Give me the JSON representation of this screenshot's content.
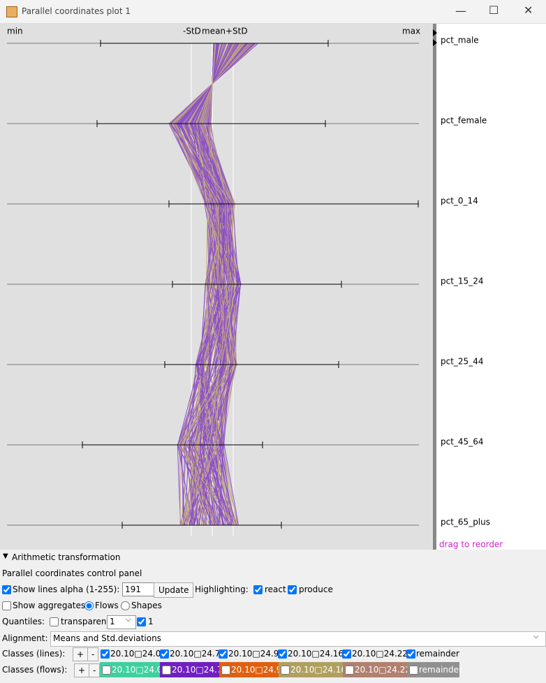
{
  "window": {
    "title": "Parallel coordinates plot 1"
  },
  "plot": {
    "header": {
      "min": "min",
      "minus_std": "-StD",
      "mean": "mean",
      "plus_std": "+StD",
      "max": "max"
    },
    "axes": [
      "pct_male",
      "pct_female",
      "pct_0_14",
      "pct_15_24",
      "pct_25_44",
      "pct_45_64",
      "pct_65_plus"
    ],
    "hint": "drag to reorder"
  },
  "panel": {
    "section": "Arithmetic transformation",
    "title": "Parallel coordinates control panel",
    "show_lines": {
      "label": "Show lines",
      "checked": true
    },
    "alpha_label": "alpha (1-255):",
    "alpha_value": "191",
    "update": "Update",
    "highlighting": "Highlighting:",
    "react": {
      "label": "react",
      "checked": true
    },
    "produce": {
      "label": "produce",
      "checked": true
    },
    "show_aggregates": {
      "label": "Show aggregates:",
      "checked": false
    },
    "flows": {
      "label": "Flows",
      "checked": true
    },
    "shapes": {
      "label": "Shapes",
      "checked": false
    },
    "quantiles": "Quantiles:",
    "transparent": {
      "label": "transparent",
      "checked": false
    },
    "quantile_select": "1",
    "quantile_check": {
      "label": "1",
      "checked": true
    },
    "alignment": "Alignment:",
    "alignment_value": "Means and Std.deviations",
    "classes_lines": "Classes (lines):",
    "classes_flows": "Classes (flows):",
    "plus": "+",
    "minus": "-",
    "classes": [
      {
        "label": "20.10□24.0",
        "color": "#40d0a0",
        "lines": true,
        "flows": false
      },
      {
        "label": "20.10□24.7",
        "color": "#7020c0",
        "lines": true,
        "flows": false
      },
      {
        "label": "20.10□24.9",
        "color": "#e06010",
        "lines": true,
        "flows": false
      },
      {
        "label": "20.10□24.16",
        "color": "#b0a060",
        "lines": true,
        "flows": false
      },
      {
        "label": "20.10□24.22",
        "color": "#b08070",
        "lines": true,
        "flows": false
      },
      {
        "label": "remainder",
        "color": "#909090",
        "lines": true,
        "flows": false
      }
    ]
  }
}
